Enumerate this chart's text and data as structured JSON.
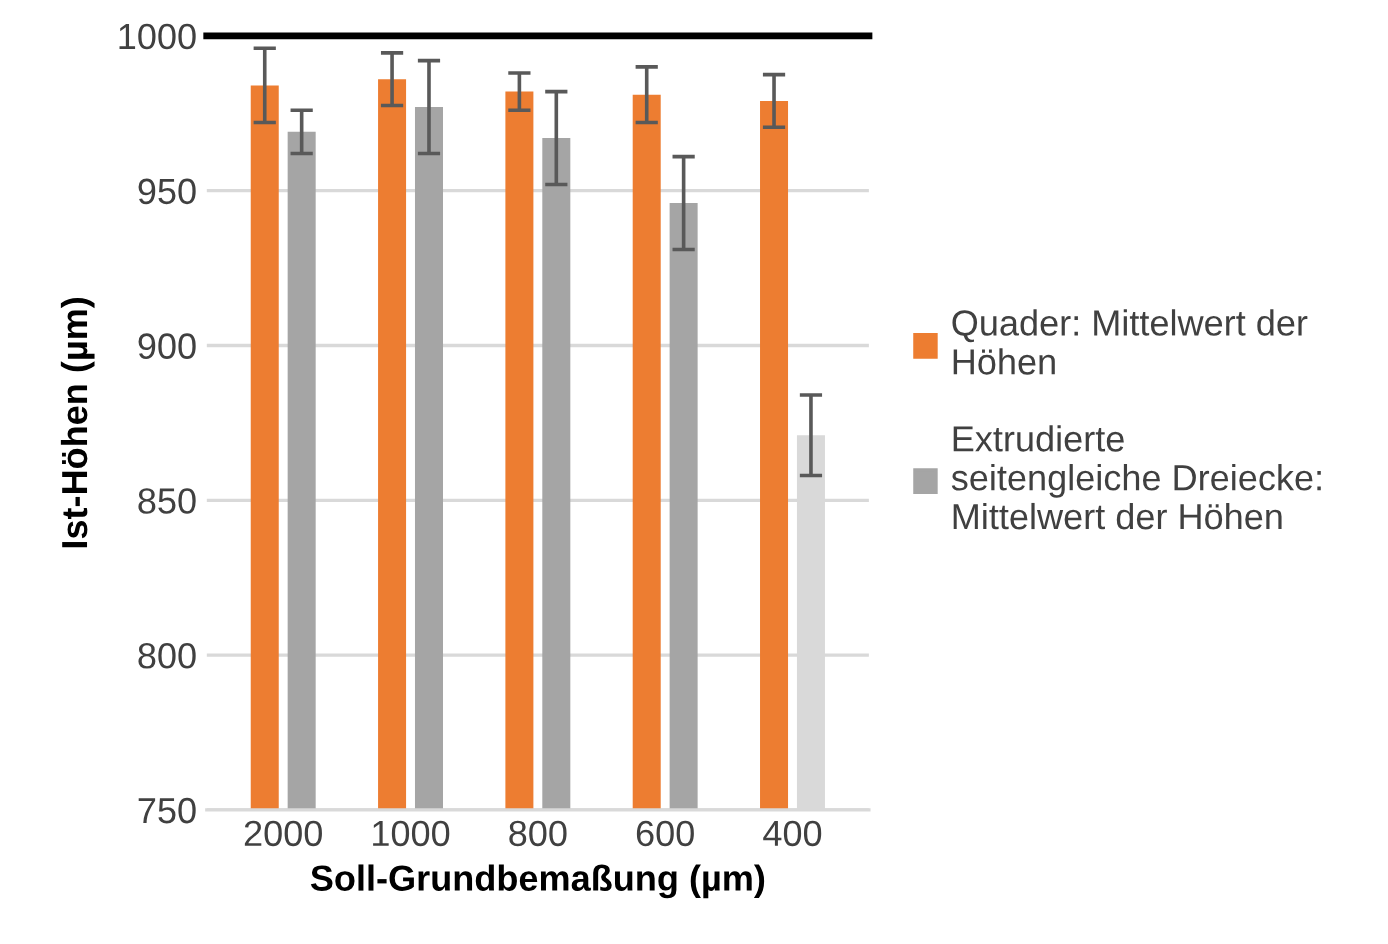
{
  "chart_data": {
    "type": "bar",
    "xlabel": "Soll-Grundbemaßung (µm)",
    "ylabel": "Ist-Höhen (µm)",
    "categories": [
      "2000",
      "1000",
      "800",
      "600",
      "400"
    ],
    "series": [
      {
        "name": "Quader: Mittelwert der\nHöhen",
        "color": "#ed7d31",
        "values": [
          984,
          986,
          982,
          981,
          979
        ],
        "errors": [
          12,
          8.5,
          6,
          9,
          8.5
        ]
      },
      {
        "name": "Extrudierte\nseitengleiche Dreiecke:\nMittelwert der Höhen",
        "color": "#a5a5a5",
        "colors": [
          "#a5a5a5",
          "#a5a5a5",
          "#a5a5a5",
          "#a5a5a5",
          "#d9d9d9"
        ],
        "values": [
          969,
          977,
          967,
          946,
          871
        ],
        "errors": [
          7,
          15,
          15,
          15,
          13
        ]
      }
    ],
    "ylim": [
      750,
      1000
    ],
    "yticks": [
      750,
      800,
      850,
      900,
      950,
      1000
    ],
    "grid": "y",
    "legend": "right",
    "ref_lines": [
      {
        "axis": "y",
        "value": 1000,
        "color": "#000000",
        "line_style": "solid"
      }
    ]
  }
}
